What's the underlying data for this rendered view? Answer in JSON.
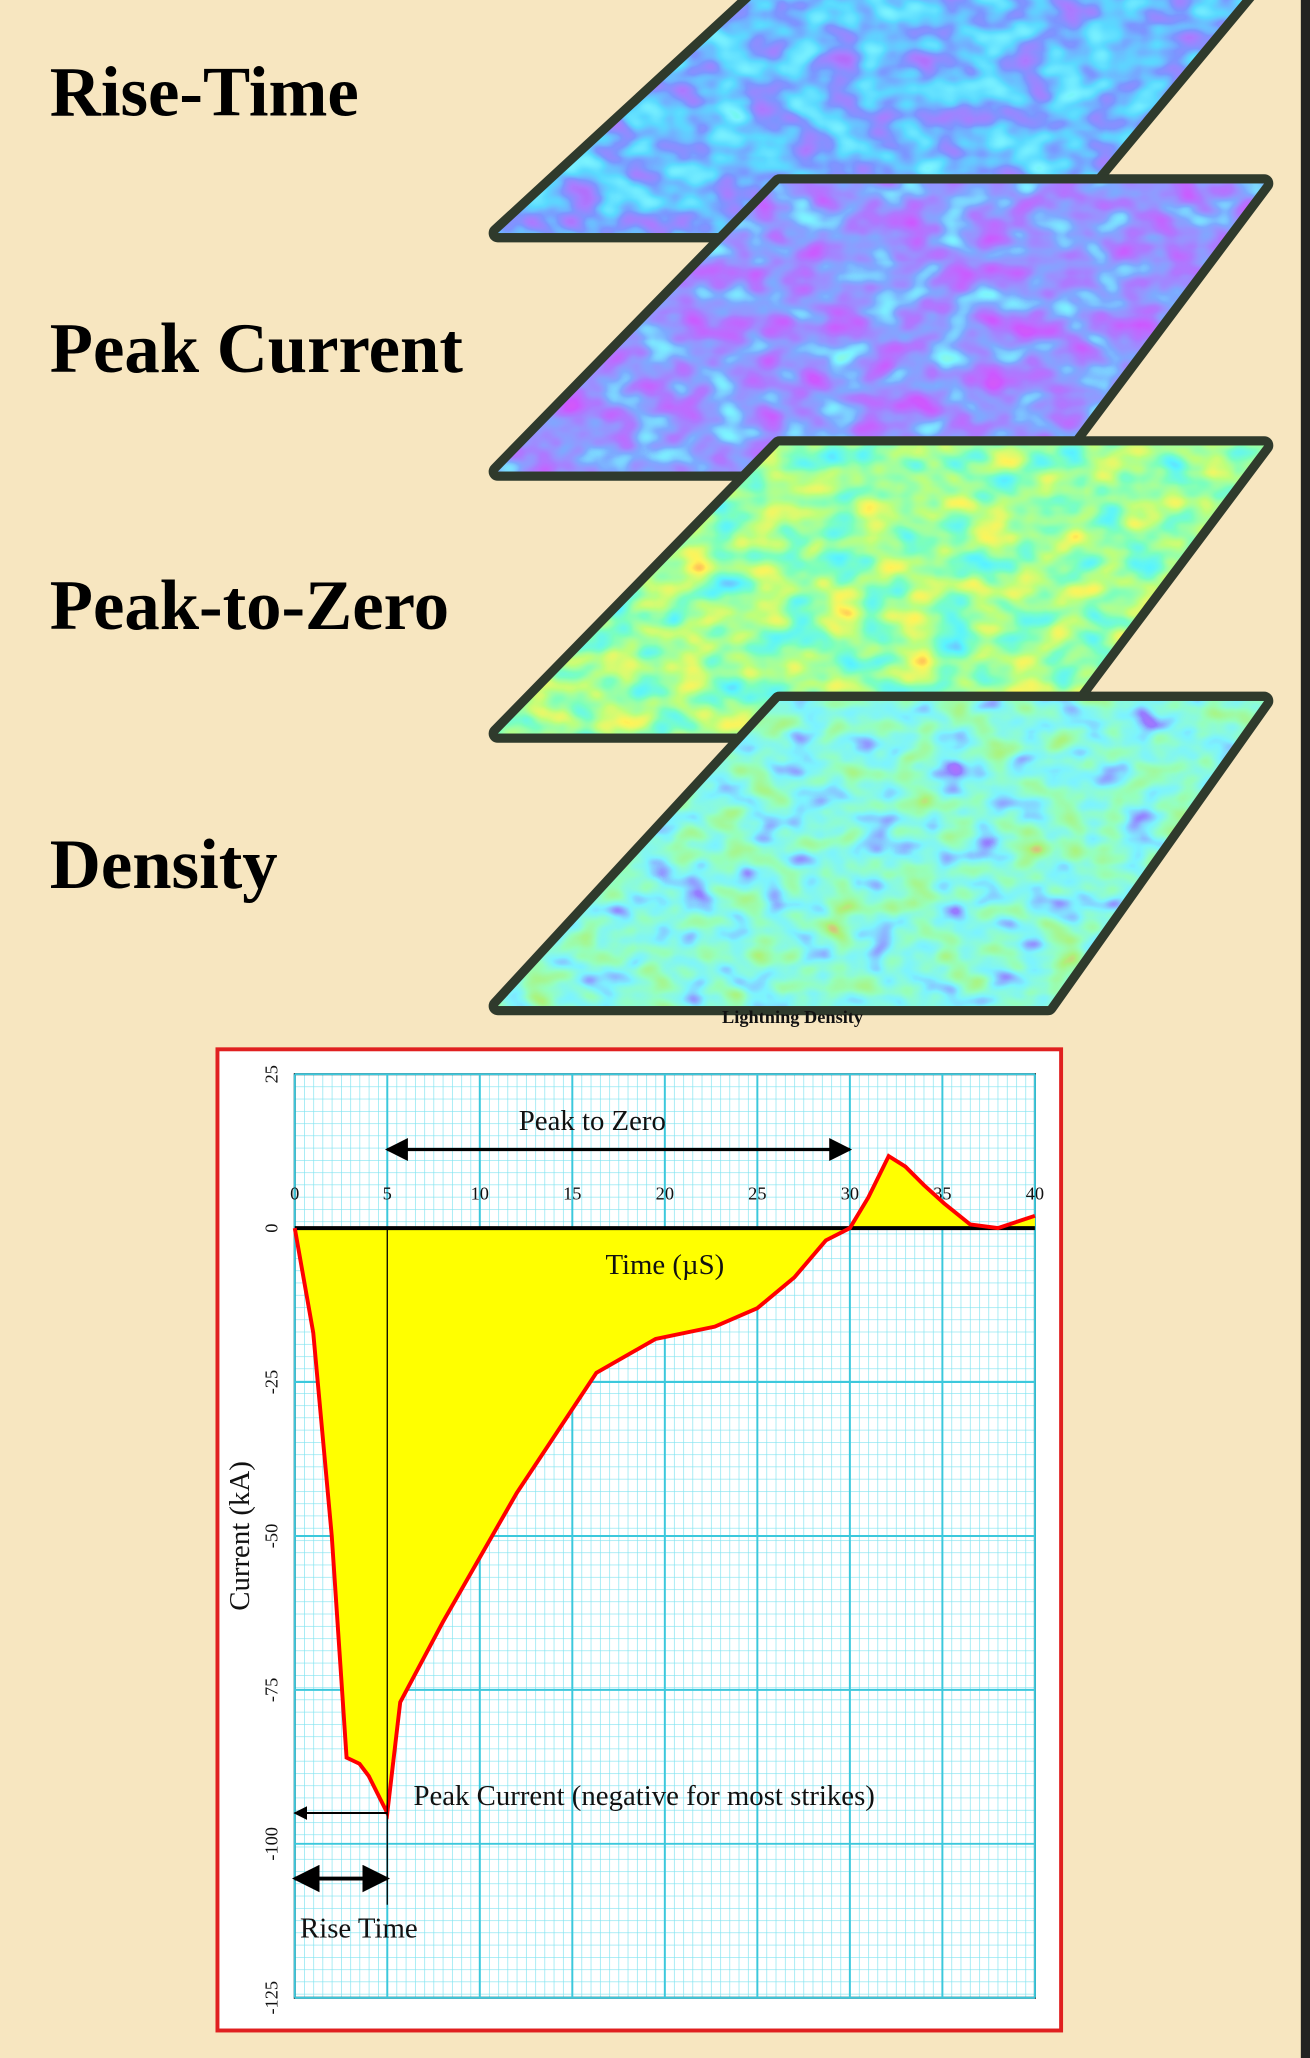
{
  "labels": [
    "Rise-Time",
    "Peak Current",
    "Peak-to-Zero",
    "Density"
  ],
  "layer_caption": "Lightning Density",
  "chart_data": {
    "type": "area",
    "x": [
      0,
      1,
      2,
      2.8,
      3.5,
      4,
      5,
      5.7,
      8,
      12,
      16.3,
      19.5,
      22.7,
      25,
      27,
      28.7,
      30,
      31,
      32.1,
      33,
      34,
      35.1,
      36.5,
      38,
      40
    ],
    "values": [
      0,
      -17,
      -50,
      -86,
      -87,
      -89,
      -95,
      -77,
      -64,
      -43,
      -23.5,
      -18,
      -16,
      -13,
      -8,
      -2,
      0,
      5,
      11.7,
      10,
      7,
      4,
      0.6,
      0,
      2
    ],
    "color": "#ff0000",
    "fill": "#ffff00",
    "xlim": [
      0,
      40
    ],
    "ylim": [
      -125,
      25
    ],
    "xticks": [
      0,
      5,
      10,
      15,
      20,
      25,
      30,
      35,
      40
    ],
    "yticks": [
      25,
      0,
      -25,
      -50,
      -75,
      -100,
      -125
    ],
    "xlabel": "Time (µS)",
    "ylabel": "Current (kA)",
    "grid": true,
    "annotations": [
      "Peak to Zero",
      "Peak Current (negative for most strikes)",
      "Rise Time"
    ]
  }
}
